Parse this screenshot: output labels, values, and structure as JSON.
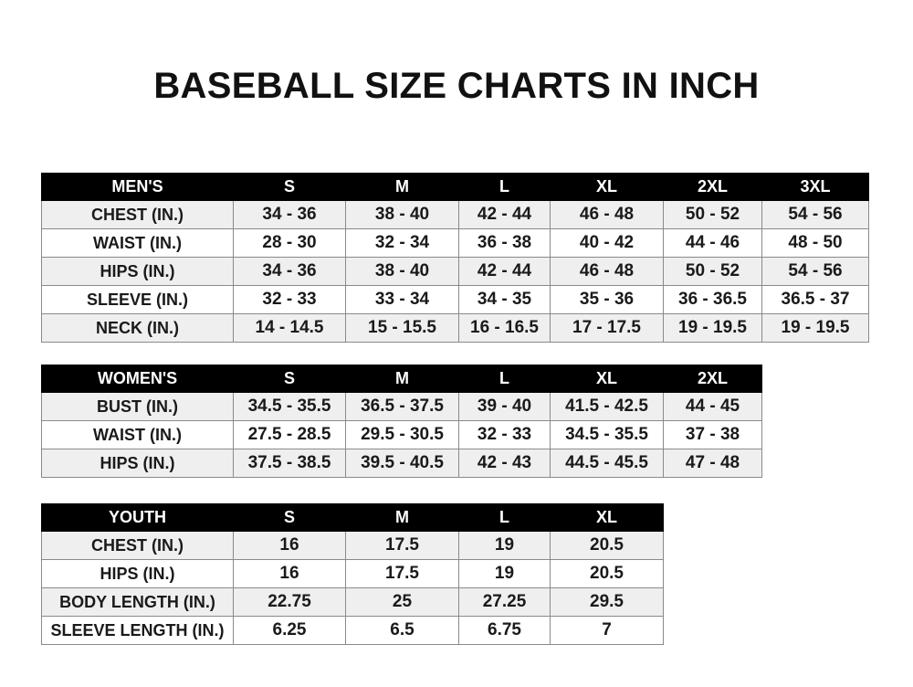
{
  "title": "BASEBALL SIZE CHARTS IN INCH",
  "tables": [
    {
      "id": "mens",
      "header": [
        "MEN'S",
        "S",
        "M",
        "L",
        "XL",
        "2XL",
        "3XL"
      ],
      "rows": [
        [
          "CHEST (IN.)",
          "34 - 36",
          "38 - 40",
          "42 - 44",
          "46 - 48",
          "50 - 52",
          "54 - 56"
        ],
        [
          "WAIST (IN.)",
          "28 - 30",
          "32 - 34",
          "36 - 38",
          "40 - 42",
          "44 - 46",
          "48 - 50"
        ],
        [
          "HIPS (IN.)",
          "34 - 36",
          "38 - 40",
          "42 - 44",
          "46 - 48",
          "50 - 52",
          "54 - 56"
        ],
        [
          "SLEEVE (IN.)",
          "32 - 33",
          "33 - 34",
          "34 - 35",
          "35 - 36",
          "36 - 36.5",
          "36.5 - 37"
        ],
        [
          "NECK (IN.)",
          "14 - 14.5",
          "15 - 15.5",
          "16 - 16.5",
          "17 - 17.5",
          "19 - 19.5",
          "19 - 19.5"
        ]
      ]
    },
    {
      "id": "womens",
      "header": [
        "WOMEN'S",
        "S",
        "M",
        "L",
        "XL",
        "2XL"
      ],
      "rows": [
        [
          "BUST (IN.)",
          "34.5 - 35.5",
          "36.5 - 37.5",
          "39 - 40",
          "41.5 - 42.5",
          "44 - 45"
        ],
        [
          "WAIST (IN.)",
          "27.5 - 28.5",
          "29.5 - 30.5",
          "32 - 33",
          "34.5 - 35.5",
          "37 - 38"
        ],
        [
          "HIPS (IN.)",
          "37.5 - 38.5",
          "39.5 - 40.5",
          "42 - 43",
          "44.5 - 45.5",
          "47 - 48"
        ]
      ]
    },
    {
      "id": "youth",
      "header": [
        "YOUTH",
        "S",
        "M",
        "L",
        "XL"
      ],
      "rows": [
        [
          "CHEST (IN.)",
          "16",
          "17.5",
          "19",
          "20.5"
        ],
        [
          "HIPS (IN.)",
          "16",
          "17.5",
          "19",
          "20.5"
        ],
        [
          "BODY LENGTH (IN.)",
          "22.75",
          "25",
          "27.25",
          "29.5"
        ],
        [
          "SLEEVE LENGTH (IN.)",
          "6.25",
          "6.5",
          "6.75",
          "7"
        ]
      ]
    }
  ]
}
